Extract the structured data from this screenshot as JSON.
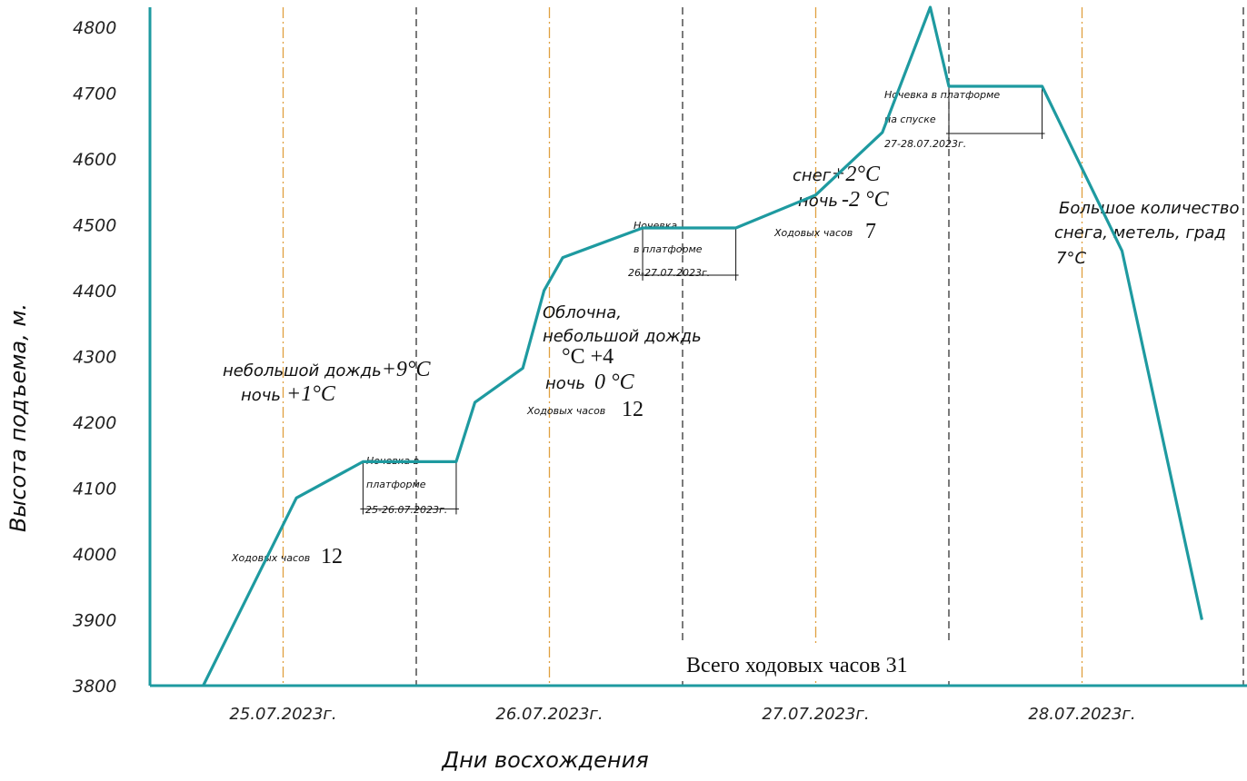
{
  "chart_data": {
    "type": "line",
    "xlabel": "Дни восхождения",
    "ylabel": "Высота подъема, м.",
    "ylim": [
      3800,
      4800
    ],
    "yticks": [
      "4800",
      "4700",
      "4600",
      "4500",
      "4400",
      "4300",
      "4200",
      "4100",
      "4000",
      "3900",
      "3800"
    ],
    "day_labels": [
      "25.07.2023г.",
      "26.07.2023г.",
      "27.07.2023г.",
      "28.07.2023г."
    ],
    "series": [
      {
        "color": "#1e9aa0",
        "points": [
          {
            "x": 0.2,
            "y": 3800
          },
          {
            "x": 0.55,
            "y": 4085
          },
          {
            "x": 0.8,
            "y": 4140
          },
          {
            "x": 1.15,
            "y": 4140
          },
          {
            "x": 1.22,
            "y": 4230
          },
          {
            "x": 1.4,
            "y": 4282
          },
          {
            "x": 1.48,
            "y": 4400
          },
          {
            "x": 1.55,
            "y": 4450
          },
          {
            "x": 1.85,
            "y": 4495
          },
          {
            "x": 2.2,
            "y": 4495
          },
          {
            "x": 2.5,
            "y": 4545
          },
          {
            "x": 2.75,
            "y": 4640
          },
          {
            "x": 2.93,
            "y": 4830
          },
          {
            "x": 3.0,
            "y": 4710
          },
          {
            "x": 3.35,
            "y": 4710
          },
          {
            "x": 3.65,
            "y": 4460
          },
          {
            "x": 3.95,
            "y": 3900
          }
        ]
      }
    ],
    "annotations": [
      {
        "line1": "небольшой дождь",
        "line1_val": "+9°C",
        "line2": "ночь",
        "line2_val": "+1°C"
      },
      {
        "label": "Ходовых часов",
        "value": "12"
      },
      {
        "line1": "Облочна,",
        "line2": "небольшой дождь",
        "line3": "°C +4",
        "line4": "ночь",
        "line4_val": "0 °C",
        "hours_label": "Ходовых часов",
        "hours_value": "12"
      },
      {
        "line1": "снег",
        "line1_val": "+2°C",
        "line2": "ночь",
        "line2_val": "-2 °C",
        "hours_label": "Ходовых часов",
        "hours_value": "7"
      },
      {
        "line1": "Большое количество",
        "line2": "снега, метель, град",
        "line3": "7°C"
      }
    ],
    "camp_boxes": [
      {
        "line1": "Ночевка в",
        "line2": "платформе",
        "date": "25-26.07.2023г."
      },
      {
        "line1": "Ночевка",
        "line2": "в платформе",
        "date": "26-27.07.2023г."
      },
      {
        "line1": "Ночевка в платформе",
        "line2": "на спуске",
        "date": "27-28.07.2023г."
      }
    ],
    "total": "Всего ходовых часов 31"
  }
}
